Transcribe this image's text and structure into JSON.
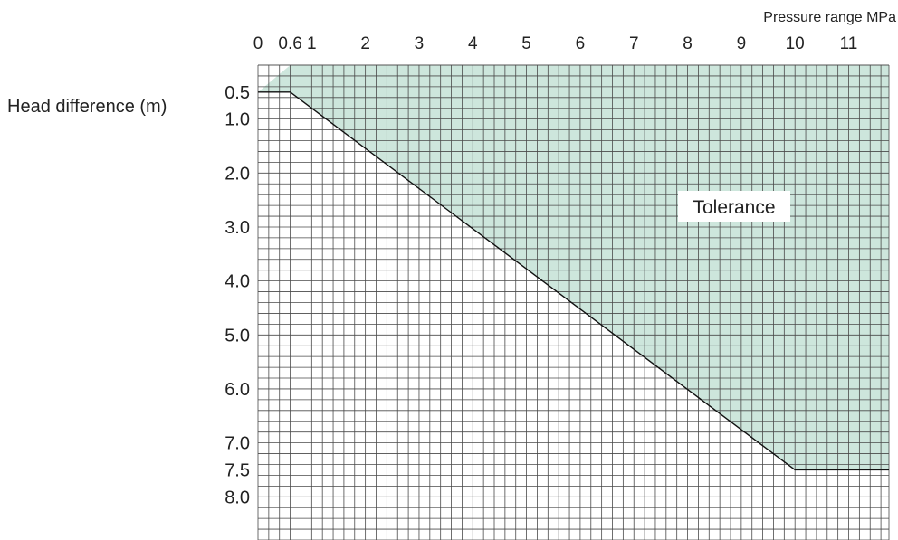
{
  "chart_data": {
    "type": "area",
    "x_axis_title": "Pressure range MPa",
    "y_axis_title": "Head difference (m)",
    "x_ticks": [
      "0",
      "0.6",
      "1",
      "2",
      "3",
      "4",
      "5",
      "6",
      "7",
      "8",
      "9",
      "10",
      "11"
    ],
    "x_tick_values": [
      0,
      0.6,
      1,
      2,
      3,
      4,
      5,
      6,
      7,
      8,
      9,
      10,
      11
    ],
    "y_ticks": [
      "0.5",
      "1.0",
      "2.0",
      "3.0",
      "4.0",
      "5.0",
      "6.0",
      "7.0",
      "7.5",
      "8.0"
    ],
    "y_tick_values": [
      0.5,
      1.0,
      2.0,
      3.0,
      4.0,
      5.0,
      6.0,
      7.0,
      7.5,
      8.0
    ],
    "xlim": [
      0,
      11.75
    ],
    "ylim": [
      0,
      8.8
    ],
    "y_inverted": true,
    "x_axis_position": "top",
    "grid": true,
    "grid_minor_step": {
      "x": 0.2,
      "y": 0.2
    },
    "boundary_line": {
      "x": [
        0,
        0.6,
        10,
        11.75
      ],
      "y": [
        0.5,
        0.5,
        7.5,
        7.5
      ]
    },
    "region_label": "Tolerance",
    "region_color": "#cde6dc"
  }
}
